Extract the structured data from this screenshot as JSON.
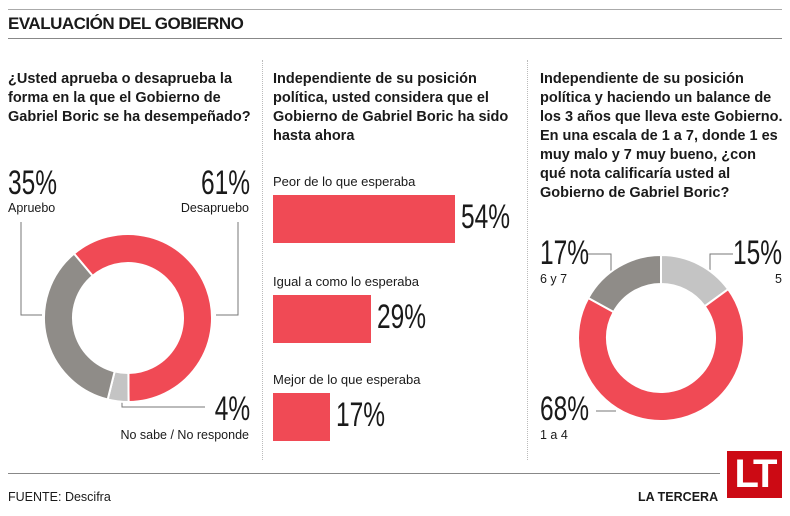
{
  "title": "EVALUACIÓN DEL GOBIERNO",
  "colors": {
    "red": "#f04a55",
    "dark_gray": "#8f8c88",
    "light_gray": "#c4c4c4"
  },
  "chart_data": [
    {
      "type": "pie",
      "style": "donut",
      "question": "¿Usted aprueba o desaprueba la forma en la que el Gobierno de Gabriel Boric se ha desempeñado?",
      "slices": [
        {
          "label": "Desapruebo",
          "value": 61,
          "display": "61%",
          "color": "#f04a55"
        },
        {
          "label": "No sabe / No responde",
          "value": 4,
          "display": "4%",
          "color": "#c4c4c4"
        },
        {
          "label": "Apruebo",
          "value": 35,
          "display": "35%",
          "color": "#8f8c88"
        }
      ]
    },
    {
      "type": "bar",
      "orientation": "horizontal",
      "question": "Independiente de su posición política, usted considera que el Gobierno de Gabriel Boric ha sido hasta ahora",
      "categories": [
        "Peor de lo que esperaba",
        "Igual a como lo esperaba",
        "Mejor de lo que esperaba"
      ],
      "values": [
        54,
        29,
        17
      ],
      "display": [
        "54%",
        "29%",
        "17%"
      ]
    },
    {
      "type": "pie",
      "style": "donut",
      "question": "Independiente de su posición política y haciendo un balance de los 3 años que lleva este Gobierno. En una escala de 1 a 7, donde 1 es muy malo y 7 muy bueno, ¿con qué nota calificaría usted al Gobierno de Gabriel Boric?",
      "slices": [
        {
          "label": "5",
          "value": 15,
          "display": "15%",
          "color": "#c4c4c4"
        },
        {
          "label": "1 a 4",
          "value": 68,
          "display": "68%",
          "color": "#f04a55"
        },
        {
          "label": "6 y 7",
          "value": 17,
          "display": "17%",
          "color": "#8f8c88"
        }
      ]
    }
  ],
  "footer": {
    "source": "FUENTE: Descifra",
    "brand": "LA TERCERA",
    "logo": "LT"
  }
}
